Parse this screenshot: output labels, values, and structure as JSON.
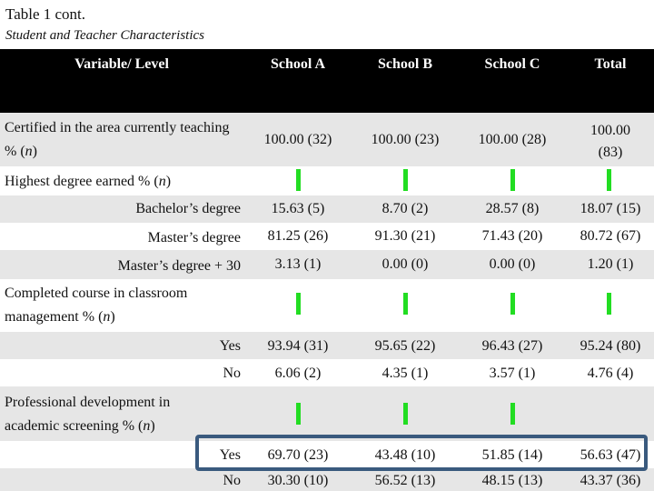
{
  "caption": {
    "label": "Table 1 cont.",
    "title": "Student and Teacher Characteristics"
  },
  "header": {
    "variable": "Variable/ Level",
    "school_a": "School A",
    "school_b": "School B",
    "school_c": "School C",
    "total": "Total"
  },
  "rows": {
    "certified": {
      "label_main": "Certified in the area currently teaching %",
      "label_n": "n",
      "a": "100.00 (32)",
      "b": "100.00 (23)",
      "c": "100.00 (28)",
      "total_1": "100.00",
      "total_2": "(83)"
    },
    "degree": {
      "label_main": "Highest degree earned %",
      "label_n": "n"
    },
    "bachelor": {
      "label": "Bachelor’s degree",
      "a": "15.63 (5)",
      "b": "8.70 (2)",
      "c": "28.57 (8)",
      "total": "18.07 (15)"
    },
    "master": {
      "label": "Master’s degree",
      "a": "81.25 (26)",
      "b": "91.30 (21)",
      "c": "71.43 (20)",
      "total": "80.72 (67)"
    },
    "master30": {
      "label": "Master’s degree + 30",
      "a": "3.13 (1)",
      "b": "0.00 (0)",
      "c": "0.00 (0)",
      "total": "1.20 (1)"
    },
    "course": {
      "label_line1": "Completed course in classroom",
      "label_line2": "management %",
      "label_n": "n"
    },
    "course_yes": {
      "label": "Yes",
      "a": "93.94 (31)",
      "b": "95.65 (22)",
      "c": "96.43 (27)",
      "total": "95.24 (80)"
    },
    "course_no": {
      "label": "No",
      "a": "6.06 (2)",
      "b": "4.35 (1)",
      "c": "3.57 (1)",
      "total": "4.76 (4)"
    },
    "pd": {
      "label_line1": "Professional development in",
      "label_line2": "academic screening %",
      "label_n": "n"
    },
    "pd_yes": {
      "label": "Yes",
      "a": "69.70 (23)",
      "b": "43.48 (10)",
      "c": "51.85 (14)",
      "total": "56.63 (47)"
    },
    "pd_no": {
      "label": "No",
      "a": "30.30 (10)",
      "b": "56.52 (13)",
      "c": "48.15 (13)",
      "total": "43.37 (36)"
    }
  },
  "colors": {
    "header_bg": "#000000",
    "row_shade": "#e6e6e6",
    "marker": "#22dd22",
    "highlight_border": "#3a5a7e"
  }
}
